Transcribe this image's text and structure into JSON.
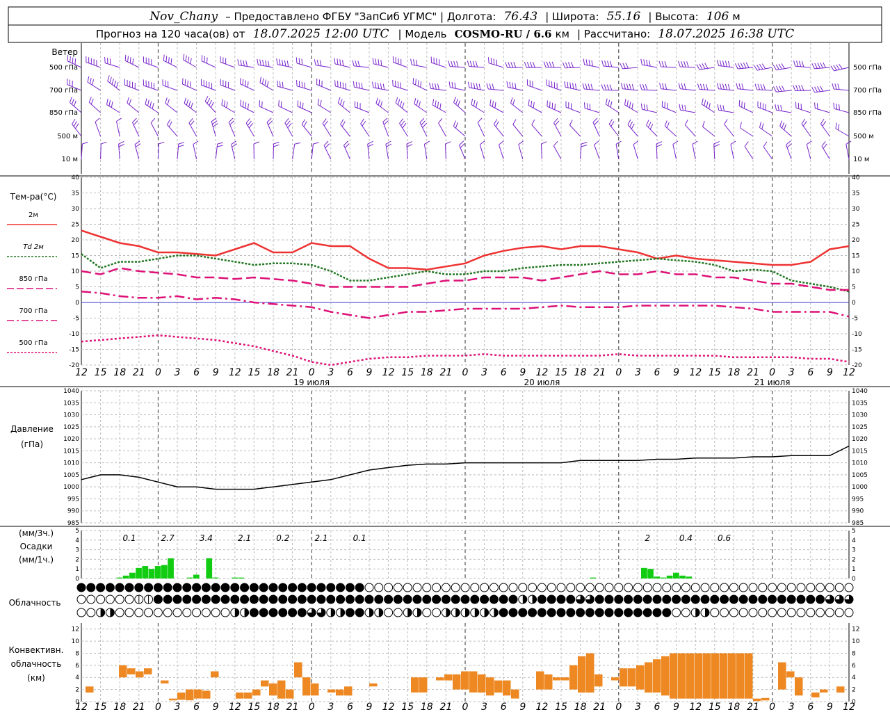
{
  "header": {
    "station": "Nov_Chany",
    "provider": "– Предоставлено ФГБУ \"ЗапСиб УГМС\" | Долгота:",
    "lon": "76.43",
    "lat_label": "| Широта:",
    "lat": "55.16",
    "alt_label": "| Высота:",
    "alt": "106",
    "alt_unit": "м",
    "line2_a": "Прогноз на 120 часа(ов) от",
    "forecast_from": "18.07.2025 12:00 UTC",
    "line2_b": "| Модель",
    "model": "COSMO-RU / 6.6",
    "model_unit": "км",
    "line2_c": "| Рассчитано:",
    "computed": "18.07.2025 16:38 UTC"
  },
  "panels": {
    "wind": {
      "title": "Ветер",
      "levels": [
        "500 гПа",
        "700 гПа",
        "850 гПа",
        "500 м",
        "10  м"
      ]
    },
    "temp": {
      "title": "Тем-ра(°C)",
      "legend": [
        {
          "label": "2м",
          "color": "#ee3333",
          "style": "solid"
        },
        {
          "label": "Td  2м",
          "color": "#227722",
          "style": "dots"
        },
        {
          "label": "850 гПа",
          "color": "#dd1177",
          "style": "dash"
        },
        {
          "label": "700 гПа",
          "color": "#dd1177",
          "style": "dashdot"
        },
        {
          "label": "500 гПа",
          "color": "#dd1177",
          "style": "dots"
        }
      ],
      "yticks": [
        "40",
        "35",
        "30",
        "25",
        "20",
        "15",
        "10",
        "5",
        "0",
        "-5",
        "-10",
        "-15",
        "-20"
      ]
    },
    "pressure": {
      "title": "Давление",
      "unit": "(гПа)",
      "yticks": [
        "1040",
        "1035",
        "1030",
        "1025",
        "1020",
        "1015",
        "1010",
        "1005",
        "1000",
        "995",
        "990",
        "985"
      ]
    },
    "precip": {
      "unit3": "(мм/3ч.)",
      "title": "Осадки",
      "unit1": "(мм/1ч.)",
      "yticks": [
        "5",
        "4",
        "3",
        "2",
        "1",
        "0"
      ],
      "labels3h": [
        "0.1",
        "2.7",
        "3.4",
        "2.1",
        "0.2",
        "2.1",
        "0.1",
        "2",
        "0.4",
        "0.6"
      ]
    },
    "cloud": {
      "title": "Облачность"
    },
    "conv": {
      "title1": "Конвективн.",
      "title2": "облачность",
      "unit": "(км)",
      "yticks": [
        "12",
        "10",
        "8",
        "6",
        "4",
        "2",
        "0"
      ]
    }
  },
  "time_axis": {
    "hour_labels": [
      "12",
      "15",
      "18",
      "21",
      "0",
      "3",
      "6",
      "9",
      "12",
      "15",
      "18",
      "21",
      "0",
      "3",
      "6",
      "9",
      "12",
      "15",
      "18",
      "21",
      "0",
      "3",
      "6",
      "9",
      "12",
      "15",
      "18"
    ],
    "day_labels": [
      "19 июля",
      "20 июля",
      "21 июля"
    ]
  },
  "colors": {
    "wind": "#7722cc",
    "t2m": "#ee3333",
    "td": "#227722",
    "upper": "#dd1177",
    "zero_line": "#3333cc",
    "precip": "#11cc11",
    "conv": "#ee8822"
  },
  "chart_data": [
    {
      "type": "line",
      "title": "Тем-ра(°C)",
      "x_hours": [
        0,
        3,
        6,
        9,
        12,
        15,
        18,
        21,
        24,
        27,
        30,
        33,
        36,
        39,
        42,
        45,
        48,
        51,
        54,
        57,
        60,
        63,
        66,
        69,
        72,
        75,
        78,
        81,
        84,
        87,
        90,
        93,
        96,
        99,
        102,
        105,
        108,
        111,
        114,
        117,
        120
      ],
      "ylim": [
        -20,
        40
      ],
      "series": [
        {
          "name": "2м",
          "values": [
            23,
            21,
            19,
            18,
            16,
            16,
            15.5,
            15,
            17,
            19,
            16,
            16,
            19,
            18,
            18,
            14,
            11,
            11,
            10.5,
            11.5,
            12.5,
            15,
            16.5,
            17.5,
            18,
            17,
            18,
            18,
            17,
            16,
            14,
            15,
            14,
            13.5,
            13,
            12.5,
            12,
            12,
            13,
            17,
            18
          ]
        },
        {
          "name": "Td 2м",
          "values": [
            15.5,
            11,
            13,
            13,
            14,
            15,
            15,
            14,
            13,
            12,
            12.5,
            12.5,
            12,
            10,
            7,
            7,
            8,
            9,
            10,
            9,
            9,
            10,
            10,
            11,
            11.5,
            12,
            12,
            12.5,
            13,
            13.5,
            14,
            13.5,
            13,
            12,
            10,
            10.5,
            10,
            7,
            6,
            5,
            3.5
          ]
        },
        {
          "name": "850 гПа",
          "values": [
            10,
            9,
            11,
            10,
            9.5,
            9,
            8,
            8,
            7.5,
            8,
            7.5,
            7,
            6,
            5,
            5,
            5,
            5,
            5,
            6,
            7,
            7,
            8,
            8,
            8,
            7,
            8,
            9,
            10,
            9,
            9,
            10,
            9,
            9,
            8,
            8,
            7,
            6,
            6,
            5,
            4,
            4
          ]
        },
        {
          "name": "700 гПа",
          "values": [
            3.5,
            3,
            2,
            1.5,
            1.5,
            2,
            1,
            1.5,
            1,
            0,
            -0.5,
            -1,
            -1.5,
            -3,
            -4,
            -5,
            -4,
            -3,
            -3,
            -2.5,
            -2,
            -2,
            -2,
            -2,
            -1.5,
            -1,
            -1.5,
            -1.5,
            -1.5,
            -1,
            -1,
            -1,
            -1,
            -1,
            -1.5,
            -2,
            -3,
            -3,
            -3,
            -3,
            -4.5
          ]
        },
        {
          "name": "500 гПа",
          "values": [
            -12.5,
            -12,
            -11.5,
            -11,
            -10.5,
            -11,
            -11.5,
            -12,
            -13,
            -14,
            -15.5,
            -17,
            -19,
            -21,
            -19,
            -18,
            -17.5,
            -17.5,
            -17,
            -17,
            -17,
            -16.5,
            -17,
            -17,
            -17,
            -17,
            -17,
            -17,
            -16.5,
            -17,
            -17,
            -17,
            -17,
            -17,
            -17.5,
            -17.5,
            -17.5,
            -17.5,
            -18,
            -18,
            -19
          ]
        }
      ]
    },
    {
      "type": "line",
      "title": "Давление",
      "ylabel": "(гПа)",
      "x_hours": [
        0,
        3,
        6,
        9,
        12,
        15,
        18,
        21,
        24,
        27,
        30,
        33,
        36,
        39,
        42,
        45,
        48,
        51,
        54,
        57,
        60,
        63,
        66,
        69,
        72,
        75,
        78,
        81,
        84,
        87,
        90,
        93,
        96,
        99,
        102,
        105,
        108,
        111,
        114,
        117,
        120
      ],
      "ylim": [
        985,
        1040
      ],
      "series": [
        {
          "name": "Давление",
          "values": [
            1003,
            1005,
            1005,
            1004,
            1002,
            1000,
            1000,
            999,
            999,
            999,
            1000,
            1001,
            1002,
            1003,
            1005,
            1007,
            1008,
            1009,
            1009.5,
            1009.5,
            1010,
            1010,
            1010,
            1010,
            1010,
            1010,
            1011,
            1011,
            1011,
            1011,
            1011.5,
            1011.5,
            1012,
            1012,
            1012,
            1012.5,
            1012.5,
            1013,
            1013,
            1013,
            1017
          ]
        }
      ]
    },
    {
      "type": "bar",
      "title": "Осадки",
      "ylabel": "(мм/1ч.)",
      "x_hours": [
        6,
        7,
        8,
        9,
        10,
        11,
        12,
        13,
        14,
        17,
        18,
        20,
        21,
        24,
        25,
        80,
        88,
        89,
        90,
        91,
        92,
        93,
        94,
        95
      ],
      "ylim": [
        0,
        5
      ],
      "values": [
        0.1,
        0.3,
        0.6,
        1.1,
        1.3,
        1,
        1.3,
        1.4,
        2.1,
        0.1,
        0.4,
        2.1,
        0.1,
        0.1,
        0.1,
        0.1,
        1.1,
        1,
        0.2,
        0.1,
        0.3,
        0.6,
        0.3,
        0.2
      ]
    },
    {
      "type": "bar",
      "title": "Конвективн. облачность",
      "ylabel": "(км)",
      "ylim": [
        0,
        13
      ],
      "bars": [
        {
          "x": 1,
          "bottom": 1.5,
          "top": 2.5
        },
        {
          "x": 5,
          "bottom": 4,
          "top": 6
        },
        {
          "x": 6,
          "bottom": 4.5,
          "top": 5.5
        },
        {
          "x": 7,
          "bottom": 4,
          "top": 5
        },
        {
          "x": 8,
          "bottom": 4.5,
          "top": 5.5
        },
        {
          "x": 10,
          "bottom": 3,
          "top": 3.5
        },
        {
          "x": 11,
          "bottom": 0.2,
          "top": 0.5
        },
        {
          "x": 12,
          "bottom": 0.3,
          "top": 1.5
        },
        {
          "x": 13,
          "bottom": 0.2,
          "top": 2
        },
        {
          "x": 14,
          "bottom": 0.5,
          "top": 2
        },
        {
          "x": 15,
          "bottom": 0.5,
          "top": 1.8
        },
        {
          "x": 16,
          "bottom": 4,
          "top": 5
        },
        {
          "x": 19,
          "bottom": 0.5,
          "top": 1.5
        },
        {
          "x": 20,
          "bottom": 0.5,
          "top": 1.5
        },
        {
          "x": 21,
          "bottom": 1,
          "top": 2
        },
        {
          "x": 22,
          "bottom": 2.5,
          "top": 3.5
        },
        {
          "x": 23,
          "bottom": 1,
          "top": 3
        },
        {
          "x": 24,
          "bottom": 0.5,
          "top": 3.5
        },
        {
          "x": 25,
          "bottom": 0.5,
          "top": 2
        },
        {
          "x": 26,
          "bottom": 4,
          "top": 6.5
        },
        {
          "x": 27,
          "bottom": 1,
          "top": 4
        },
        {
          "x": 28,
          "bottom": 1,
          "top": 3
        },
        {
          "x": 30,
          "bottom": 1.5,
          "top": 2
        },
        {
          "x": 31,
          "bottom": 1,
          "top": 2
        },
        {
          "x": 32,
          "bottom": 1,
          "top": 2.5
        },
        {
          "x": 35,
          "bottom": 2.5,
          "top": 3
        },
        {
          "x": 40,
          "bottom": 1.5,
          "top": 4
        },
        {
          "x": 41,
          "bottom": 1.5,
          "top": 4
        },
        {
          "x": 43,
          "bottom": 3.5,
          "top": 4
        },
        {
          "x": 44,
          "bottom": 3.5,
          "top": 4.5
        },
        {
          "x": 45,
          "bottom": 2,
          "top": 4.5
        },
        {
          "x": 46,
          "bottom": 2,
          "top": 5
        },
        {
          "x": 47,
          "bottom": 1.5,
          "top": 5
        },
        {
          "x": 48,
          "bottom": 1.5,
          "top": 4.5
        },
        {
          "x": 49,
          "bottom": 1,
          "top": 4
        },
        {
          "x": 50,
          "bottom": 1.5,
          "top": 3.5
        },
        {
          "x": 51,
          "bottom": 1,
          "top": 3.5
        },
        {
          "x": 52,
          "bottom": 0.5,
          "top": 2
        },
        {
          "x": 55,
          "bottom": 2,
          "top": 5
        },
        {
          "x": 56,
          "bottom": 2,
          "top": 4.5
        },
        {
          "x": 57,
          "bottom": 3.5,
          "top": 4
        },
        {
          "x": 58,
          "bottom": 3.5,
          "top": 4
        },
        {
          "x": 59,
          "bottom": 2,
          "top": 6
        },
        {
          "x": 60,
          "bottom": 1.5,
          "top": 7.5
        },
        {
          "x": 61,
          "bottom": 1.5,
          "top": 8
        },
        {
          "x": 62,
          "bottom": 2.5,
          "top": 4.5
        },
        {
          "x": 64,
          "bottom": 3.5,
          "top": 4
        },
        {
          "x": 65,
          "bottom": 2.5,
          "top": 5.5
        },
        {
          "x": 66,
          "bottom": 2.5,
          "top": 5.5
        },
        {
          "x": 67,
          "bottom": 2,
          "top": 6
        },
        {
          "x": 68,
          "bottom": 1.5,
          "top": 6.5
        },
        {
          "x": 69,
          "bottom": 1.5,
          "top": 7
        },
        {
          "x": 70,
          "bottom": 1,
          "top": 7.5
        },
        {
          "x": 71,
          "bottom": 0.5,
          "top": 8
        },
        {
          "x": 72,
          "bottom": 0.5,
          "top": 8
        },
        {
          "x": 73,
          "bottom": 0.5,
          "top": 8
        },
        {
          "x": 74,
          "bottom": 0.5,
          "top": 8
        },
        {
          "x": 75,
          "bottom": 0.5,
          "top": 8
        },
        {
          "x": 76,
          "bottom": 0.5,
          "top": 8
        },
        {
          "x": 77,
          "bottom": 0.5,
          "top": 8
        },
        {
          "x": 78,
          "bottom": 0.5,
          "top": 8
        },
        {
          "x": 79,
          "bottom": 0.5,
          "top": 8
        },
        {
          "x": 80,
          "bottom": 0.5,
          "top": 8
        },
        {
          "x": 81,
          "bottom": 0.1,
          "top": 0.5
        },
        {
          "x": 82,
          "bottom": 0.2,
          "top": 0.6
        },
        {
          "x": 84,
          "bottom": 2,
          "top": 6.5
        },
        {
          "x": 85,
          "bottom": 4,
          "top": 5
        },
        {
          "x": 86,
          "bottom": 1,
          "top": 4
        },
        {
          "x": 88,
          "bottom": 0.7,
          "top": 1.5
        },
        {
          "x": 89,
          "bottom": 1.5,
          "top": 2
        },
        {
          "x": 91,
          "bottom": 1.5,
          "top": 2.5
        }
      ]
    }
  ]
}
